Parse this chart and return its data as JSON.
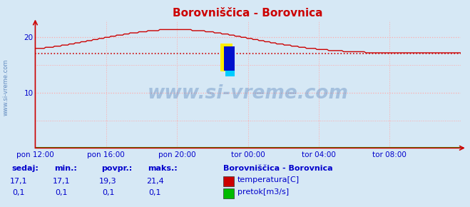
{
  "title": "Borovniščica - Borovnica",
  "bg_color": "#d6e8f5",
  "plot_bg_color": "#d6e8f5",
  "grid_color": "#ffaaaa",
  "x_labels": [
    "pon 12:00",
    "pon 16:00",
    "pon 20:00",
    "tor 00:00",
    "tor 04:00",
    "tor 08:00"
  ],
  "x_ticks_norm": [
    0.0,
    0.1667,
    0.3333,
    0.5,
    0.6667,
    0.8333
  ],
  "ylim": [
    0,
    23
  ],
  "ytick_vals": [
    10,
    20
  ],
  "temp_avg_line": 17.1,
  "temp_color": "#cc0000",
  "flow_color": "#00bb00",
  "flow_value": 0.1,
  "watermark": "www.si-vreme.com",
  "watermark_color": "#3366aa",
  "watermark_alpha": 0.3,
  "side_watermark_color": "#3366aa",
  "title_color": "#cc0000",
  "tick_color": "#0000cc",
  "stats_color": "#0000cc",
  "legend_title": "Borovniščica - Borovnica",
  "legend_items": [
    {
      "label": "temperatura[C]",
      "color": "#cc0000"
    },
    {
      "label": "pretok[m3/s]",
      "color": "#00bb00"
    }
  ],
  "stats_headers": [
    "sedaj:",
    "min.:",
    "povpr.:",
    "maks.:"
  ],
  "stats_temp": [
    "17,1",
    "17,1",
    "19,3",
    "21,4"
  ],
  "stats_flow": [
    "0,1",
    "0,1",
    "0,1",
    "0,1"
  ]
}
